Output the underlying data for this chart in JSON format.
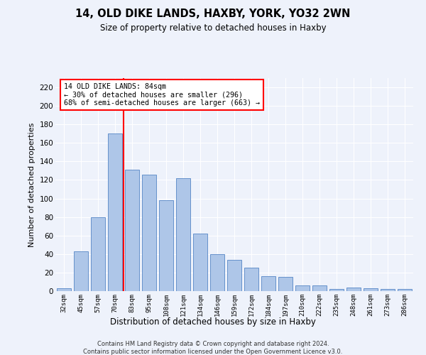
{
  "title1": "14, OLD DIKE LANDS, HAXBY, YORK, YO32 2WN",
  "title2": "Size of property relative to detached houses in Haxby",
  "xlabel": "Distribution of detached houses by size in Haxby",
  "ylabel": "Number of detached properties",
  "categories": [
    "32sqm",
    "45sqm",
    "57sqm",
    "70sqm",
    "83sqm",
    "95sqm",
    "108sqm",
    "121sqm",
    "134sqm",
    "146sqm",
    "159sqm",
    "172sqm",
    "184sqm",
    "197sqm",
    "210sqm",
    "222sqm",
    "235sqm",
    "248sqm",
    "261sqm",
    "273sqm",
    "286sqm"
  ],
  "values": [
    3,
    43,
    80,
    170,
    131,
    126,
    98,
    122,
    62,
    40,
    34,
    25,
    16,
    15,
    6,
    6,
    2,
    4,
    3,
    2,
    2
  ],
  "bar_color": "#aec6e8",
  "bar_edge_color": "#5585c5",
  "vline_color": "red",
  "annotation_text": "14 OLD DIKE LANDS: 84sqm\n← 30% of detached houses are smaller (296)\n68% of semi-detached houses are larger (663) →",
  "annotation_box_color": "white",
  "annotation_box_edge_color": "red",
  "ylim": [
    0,
    230
  ],
  "yticks": [
    0,
    20,
    40,
    60,
    80,
    100,
    120,
    140,
    160,
    180,
    200,
    220
  ],
  "footer1": "Contains HM Land Registry data © Crown copyright and database right 2024.",
  "footer2": "Contains public sector information licensed under the Open Government Licence v3.0.",
  "bg_color": "#eef2fb",
  "grid_color": "#ffffff"
}
